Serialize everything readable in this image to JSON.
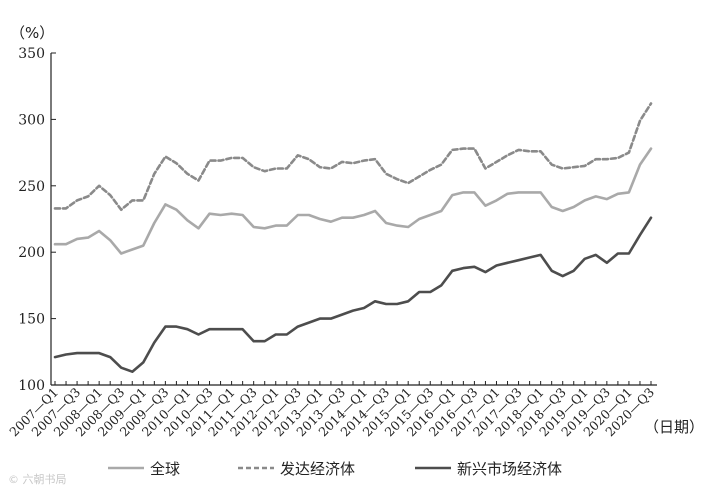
{
  "chart_data": {
    "type": "line",
    "title": "",
    "ylabel": "（%）",
    "xlabel": "（日期）",
    "ylim": [
      100,
      350
    ],
    "yticks": [
      100,
      150,
      200,
      250,
      300,
      350
    ],
    "grid": false,
    "legend_position": "bottom",
    "x_tick_labels": [
      "2007—Q1",
      "2007—Q3",
      "2008—Q1",
      "2008—Q3",
      "2009—Q1",
      "2009—Q3",
      "2010—Q1",
      "2010—Q3",
      "2011—Q1",
      "2011—Q3",
      "2012—Q1",
      "2012—Q3",
      "2013—Q1",
      "2013—Q3",
      "2014—Q1",
      "2014—Q3",
      "2015—Q1",
      "2015—Q3",
      "2016—Q1",
      "2016—Q3",
      "2017—Q1",
      "2017—Q3",
      "2018—Q1",
      "2018—Q3",
      "2019—Q1",
      "2019—Q3",
      "2020—Q1",
      "2020—Q3"
    ],
    "x": [
      "2007—Q1",
      "2007—Q2",
      "2007—Q3",
      "2007—Q4",
      "2008—Q1",
      "2008—Q2",
      "2008—Q3",
      "2008—Q4",
      "2009—Q1",
      "2009—Q2",
      "2009—Q3",
      "2009—Q4",
      "2010—Q1",
      "2010—Q2",
      "2010—Q3",
      "2010—Q4",
      "2011—Q1",
      "2011—Q2",
      "2011—Q3",
      "2011—Q4",
      "2012—Q1",
      "2012—Q2",
      "2012—Q3",
      "2012—Q4",
      "2013—Q1",
      "2013—Q2",
      "2013—Q3",
      "2013—Q4",
      "2014—Q1",
      "2014—Q2",
      "2014—Q3",
      "2014—Q4",
      "2015—Q1",
      "2015—Q2",
      "2015—Q3",
      "2015—Q4",
      "2016—Q1",
      "2016—Q2",
      "2016—Q3",
      "2016—Q4",
      "2017—Q1",
      "2017—Q2",
      "2017—Q3",
      "2017—Q4",
      "2018—Q1",
      "2018—Q2",
      "2018—Q3",
      "2018—Q4",
      "2019—Q1",
      "2019—Q2",
      "2019—Q3",
      "2019—Q4",
      "2020—Q1",
      "2020—Q2",
      "2020—Q3"
    ],
    "series": [
      {
        "name": "全球",
        "color": "#a9a9a9",
        "dash": "solid",
        "values": [
          206,
          206,
          210,
          211,
          216,
          209,
          199,
          202,
          205,
          222,
          236,
          232,
          224,
          218,
          229,
          228,
          229,
          228,
          219,
          218,
          220,
          220,
          228,
          228,
          225,
          223,
          226,
          226,
          228,
          231,
          222,
          220,
          219,
          225,
          228,
          231,
          243,
          245,
          245,
          235,
          239,
          244,
          245,
          245,
          245,
          234,
          231,
          234,
          239,
          242,
          240,
          244,
          245,
          266,
          278
        ]
      },
      {
        "name": "发达经济体",
        "color": "#8a8a8a",
        "dash": "dashed",
        "values": [
          233,
          233,
          239,
          242,
          250,
          243,
          232,
          239,
          239,
          259,
          272,
          267,
          259,
          254,
          269,
          269,
          271,
          271,
          264,
          261,
          263,
          263,
          273,
          270,
          264,
          263,
          268,
          267,
          269,
          270,
          259,
          255,
          252,
          257,
          262,
          266,
          277,
          278,
          278,
          263,
          268,
          273,
          277,
          276,
          276,
          266,
          263,
          264,
          265,
          270,
          270,
          271,
          275,
          299,
          312
        ]
      },
      {
        "name": "新兴市场经济体",
        "color": "#4d4d4d",
        "dash": "solid",
        "values": [
          121,
          123,
          124,
          124,
          124,
          121,
          113,
          110,
          117,
          132,
          144,
          144,
          142,
          138,
          142,
          142,
          142,
          142,
          133,
          133,
          138,
          138,
          144,
          147,
          150,
          150,
          153,
          156,
          158,
          163,
          161,
          161,
          163,
          170,
          170,
          175,
          186,
          188,
          189,
          185,
          190,
          192,
          194,
          196,
          198,
          186,
          182,
          186,
          195,
          198,
          192,
          199,
          199,
          213,
          226
        ]
      }
    ]
  },
  "watermark": "© 六朝书局"
}
